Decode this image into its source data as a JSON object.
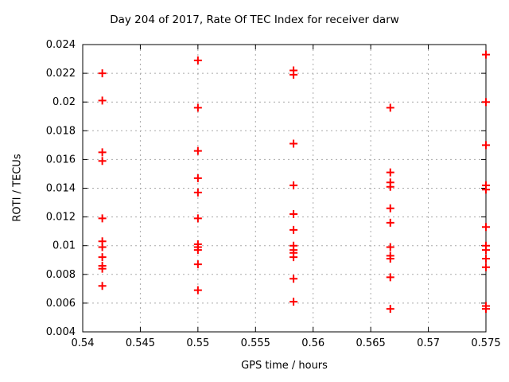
{
  "window": {
    "background": "#ffffff"
  },
  "chart_data": {
    "type": "scatter",
    "title": "Day 204 of 2017, Rate Of TEC Index for receiver darw",
    "xlabel": "GPS time / hours",
    "ylabel": "ROTI / TECUs",
    "xlim": [
      0.54,
      0.575
    ],
    "ylim": [
      0.004,
      0.024
    ],
    "xticks": [
      0.54,
      0.545,
      0.55,
      0.555,
      0.56,
      0.565,
      0.57,
      0.575
    ],
    "yticks": [
      0.004,
      0.006,
      0.008,
      0.01,
      0.012,
      0.014,
      0.016,
      0.018,
      0.02,
      0.022,
      0.024
    ],
    "grid": true,
    "legend_position": "none",
    "marker": "plus",
    "colors": {
      "marker": "#ff0000",
      "grid": "#aaaaaa",
      "axis": "#000000",
      "background": "#ffffff"
    },
    "series": [
      {
        "name": "ROTI",
        "points": [
          [
            0.5417,
            0.022
          ],
          [
            0.5417,
            0.0201
          ],
          [
            0.5417,
            0.0165
          ],
          [
            0.5417,
            0.0159
          ],
          [
            0.5417,
            0.0119
          ],
          [
            0.5417,
            0.0103
          ],
          [
            0.5417,
            0.0099
          ],
          [
            0.5417,
            0.0092
          ],
          [
            0.5417,
            0.0086
          ],
          [
            0.5417,
            0.0084
          ],
          [
            0.5417,
            0.0072
          ],
          [
            0.55,
            0.0229
          ],
          [
            0.55,
            0.0196
          ],
          [
            0.55,
            0.0166
          ],
          [
            0.55,
            0.0147
          ],
          [
            0.55,
            0.0137
          ],
          [
            0.55,
            0.0119
          ],
          [
            0.55,
            0.0101
          ],
          [
            0.55,
            0.0099
          ],
          [
            0.55,
            0.0097
          ],
          [
            0.55,
            0.0087
          ],
          [
            0.55,
            0.0069
          ],
          [
            0.5583,
            0.0222
          ],
          [
            0.5583,
            0.0219
          ],
          [
            0.5583,
            0.0171
          ],
          [
            0.5583,
            0.0142
          ],
          [
            0.5583,
            0.0122
          ],
          [
            0.5583,
            0.0111
          ],
          [
            0.5583,
            0.01
          ],
          [
            0.5583,
            0.0097
          ],
          [
            0.5583,
            0.0095
          ],
          [
            0.5583,
            0.0092
          ],
          [
            0.5583,
            0.0077
          ],
          [
            0.5583,
            0.0061
          ],
          [
            0.5667,
            0.0196
          ],
          [
            0.5667,
            0.0151
          ],
          [
            0.5667,
            0.0144
          ],
          [
            0.5667,
            0.0141
          ],
          [
            0.5667,
            0.0126
          ],
          [
            0.5667,
            0.0116
          ],
          [
            0.5667,
            0.0099
          ],
          [
            0.5667,
            0.0093
          ],
          [
            0.5667,
            0.0091
          ],
          [
            0.5667,
            0.0078
          ],
          [
            0.5667,
            0.0056
          ],
          [
            0.575,
            0.0233
          ],
          [
            0.575,
            0.02
          ],
          [
            0.575,
            0.017
          ],
          [
            0.575,
            0.0142
          ],
          [
            0.575,
            0.0139
          ],
          [
            0.575,
            0.0113
          ],
          [
            0.575,
            0.01
          ],
          [
            0.575,
            0.0097
          ],
          [
            0.575,
            0.0091
          ],
          [
            0.575,
            0.0085
          ],
          [
            0.575,
            0.0058
          ],
          [
            0.575,
            0.0056
          ]
        ]
      }
    ]
  }
}
